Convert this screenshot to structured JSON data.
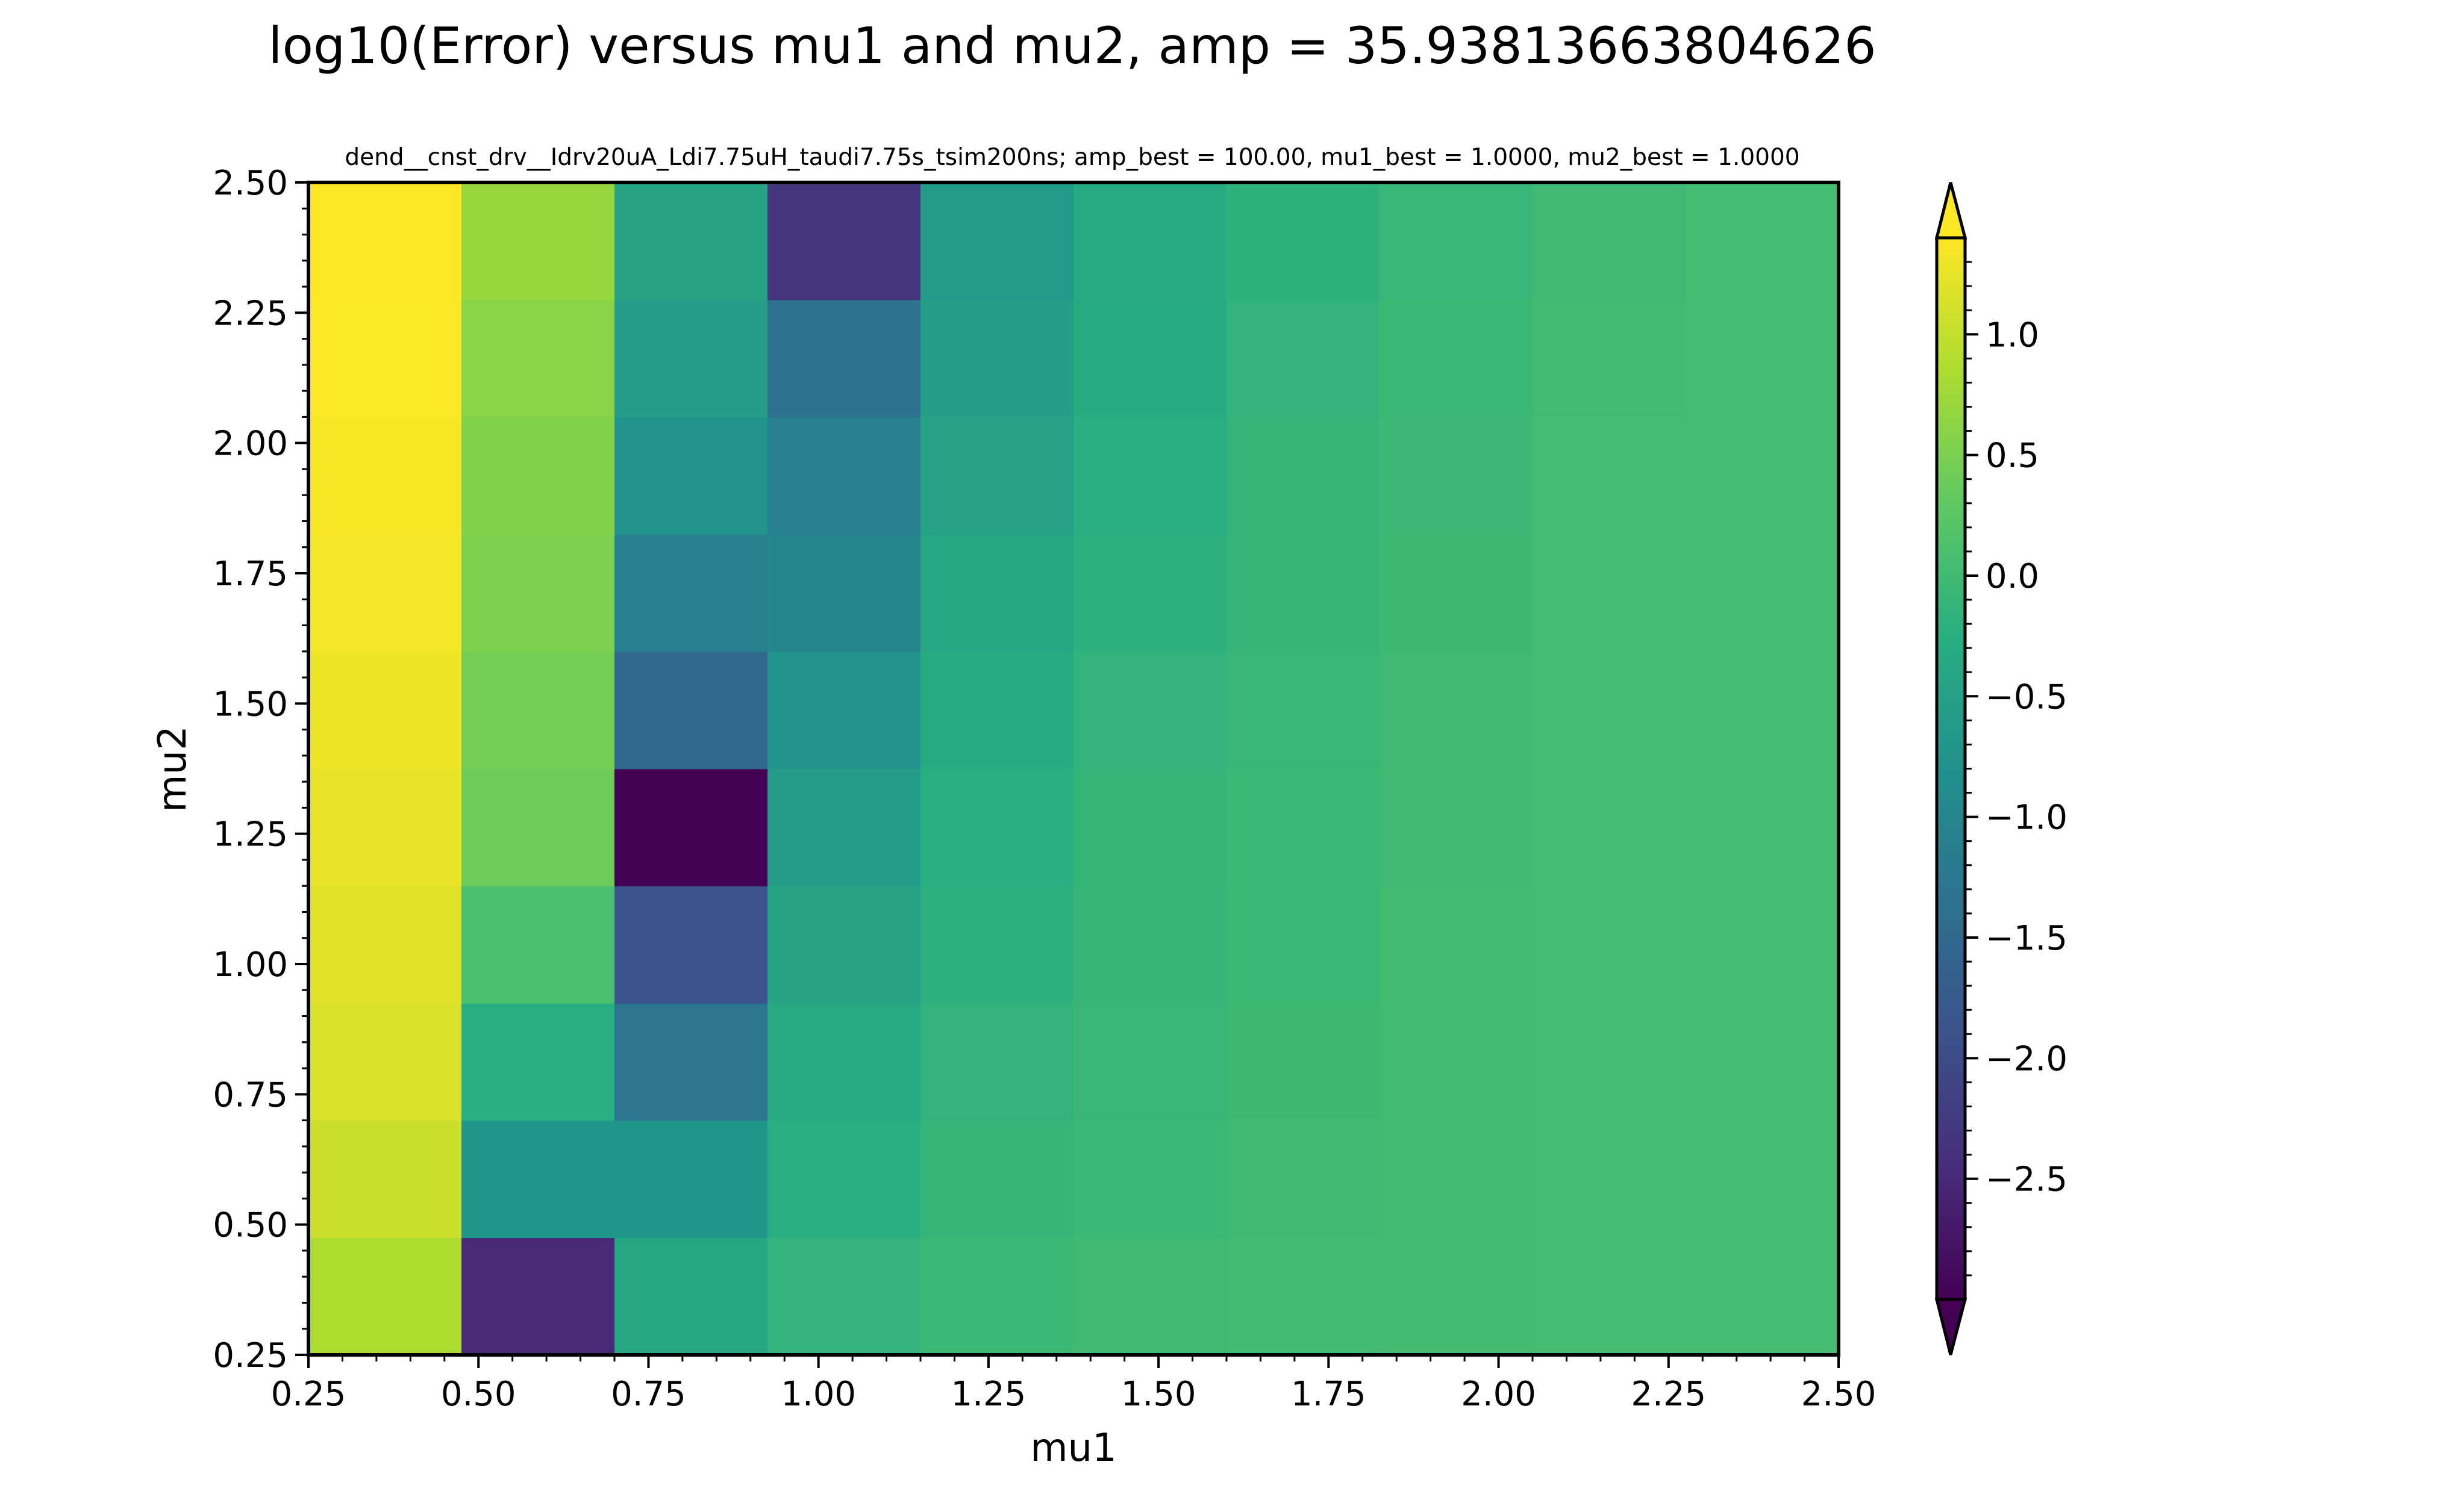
{
  "chart_data": {
    "type": "heatmap",
    "title": "log10(Error) versus mu1 and mu2, amp = 35.93813663804626",
    "subtitle": "dend__cnst_drv__Idrv20uA_Ldi7.75uH_taudi7.75s_tsim200ns; amp_best = 100.00, mu1_best = 1.0000, mu2_best = 1.0000",
    "xlabel": "mu1",
    "ylabel": "mu2",
    "xlim": [
      0.25,
      2.5
    ],
    "ylim": [
      0.25,
      2.5
    ],
    "x_ticks": [
      "0.25",
      "0.50",
      "0.75",
      "1.00",
      "1.25",
      "1.50",
      "1.75",
      "2.00",
      "2.25",
      "2.50"
    ],
    "y_ticks": [
      "0.25",
      "0.50",
      "0.75",
      "1.00",
      "1.25",
      "1.50",
      "1.75",
      "2.00",
      "2.25",
      "2.50"
    ],
    "colorbar": {
      "vmin": -3.0,
      "vmax": 1.4,
      "extend": "both",
      "colormap": "viridis",
      "ticks": [
        1.0,
        0.5,
        0.0,
        -0.5,
        -1.0,
        -1.5,
        -2.0,
        -2.5
      ],
      "tick_labels": [
        "1.0",
        "0.5",
        "0.0",
        "−0.5",
        "−1.0",
        "−1.5",
        "−2.0",
        "−2.5"
      ]
    },
    "n_cols": 10,
    "n_rows": 10,
    "values_rows_bottom_to_top": [
      [
        0.85,
        -2.5,
        -0.4,
        -0.15,
        -0.05,
        -0.02,
        0.0,
        0.02,
        0.05,
        0.05
      ],
      [
        1.05,
        -0.7,
        -0.7,
        -0.25,
        -0.1,
        -0.05,
        -0.02,
        0.0,
        0.05,
        0.05
      ],
      [
        1.15,
        -0.25,
        -1.3,
        -0.35,
        -0.15,
        -0.08,
        -0.03,
        0.0,
        0.05,
        0.05
      ],
      [
        1.2,
        0.1,
        -1.9,
        -0.45,
        -0.2,
        -0.1,
        -0.05,
        0.0,
        0.05,
        0.05
      ],
      [
        1.25,
        0.4,
        -3.0,
        -0.6,
        -0.25,
        -0.12,
        -0.06,
        -0.02,
        0.05,
        0.05
      ],
      [
        1.3,
        0.45,
        -1.5,
        -0.75,
        -0.3,
        -0.15,
        -0.08,
        -0.02,
        0.05,
        0.05
      ],
      [
        1.33,
        0.5,
        -1.1,
        -1.0,
        -0.4,
        -0.2,
        -0.1,
        -0.03,
        0.05,
        0.05
      ],
      [
        1.35,
        0.55,
        -0.75,
        -1.1,
        -0.5,
        -0.25,
        -0.12,
        -0.04,
        0.05,
        0.05
      ],
      [
        1.38,
        0.6,
        -0.6,
        -1.35,
        -0.55,
        -0.3,
        -0.15,
        -0.05,
        0.0,
        0.05
      ],
      [
        1.4,
        0.7,
        -0.45,
        -2.3,
        -0.65,
        -0.35,
        -0.18,
        -0.08,
        -0.02,
        0.05
      ]
    ]
  }
}
